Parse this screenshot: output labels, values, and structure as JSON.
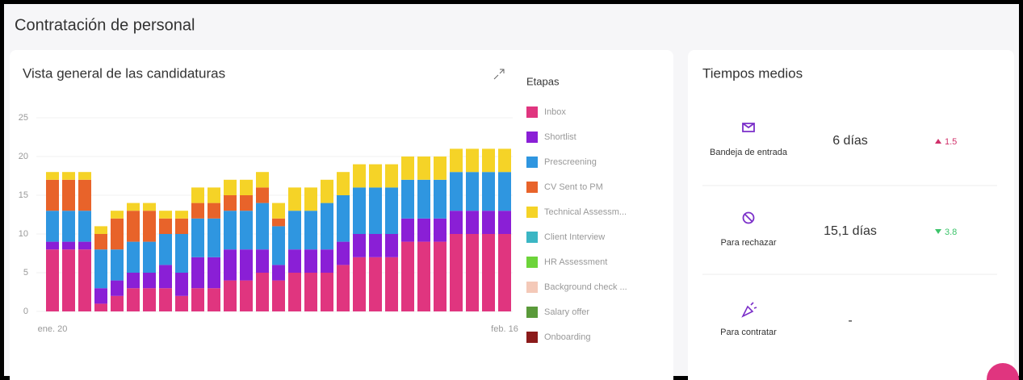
{
  "header": {
    "title": "Contratación de personal"
  },
  "chart_data": {
    "type": "bar",
    "stacked": true,
    "title": "Vista general de las candidaturas",
    "legend_title": "Etapas",
    "categories": [
      "ene. 20",
      null,
      null,
      null,
      null,
      null,
      null,
      null,
      null,
      null,
      null,
      null,
      null,
      null,
      null,
      null,
      null,
      null,
      null,
      null,
      null,
      null,
      null,
      null,
      null,
      null,
      null,
      null,
      "feb. 16"
    ],
    "ylim": [
      0,
      25
    ],
    "yticks": [
      0,
      5,
      10,
      15,
      20,
      25
    ],
    "grid": true,
    "legend": "right",
    "series": [
      {
        "name": "Inbox",
        "color": "#e0357f",
        "values": [
          8,
          8,
          8,
          1,
          2,
          3,
          3,
          3,
          2,
          3,
          3,
          4,
          4,
          5,
          4,
          5,
          5,
          5,
          6,
          7,
          7,
          7,
          9,
          9,
          9,
          10,
          10,
          10,
          10
        ]
      },
      {
        "name": "Shortlist",
        "color": "#8a1fd6",
        "values": [
          1,
          1,
          1,
          2,
          2,
          2,
          2,
          3,
          3,
          4,
          4,
          4,
          4,
          3,
          2,
          3,
          3,
          3,
          3,
          3,
          3,
          3,
          3,
          3,
          3,
          3,
          3,
          3,
          3
        ]
      },
      {
        "name": "Prescreening",
        "color": "#2f96e0",
        "values": [
          4,
          4,
          4,
          5,
          4,
          4,
          4,
          4,
          5,
          5,
          5,
          5,
          5,
          6,
          5,
          5,
          5,
          6,
          6,
          6,
          6,
          6,
          5,
          5,
          5,
          5,
          5,
          5,
          5
        ]
      },
      {
        "name": "CV Sent to PM",
        "color": "#e8632a",
        "values": [
          4,
          4,
          4,
          2,
          4,
          4,
          4,
          2,
          2,
          2,
          2,
          2,
          2,
          2,
          1,
          0,
          0,
          0,
          0,
          0,
          0,
          0,
          0,
          0,
          0,
          0,
          0,
          0,
          0
        ]
      },
      {
        "name": "Technical Assessm...",
        "color": "#f5d327",
        "values": [
          1,
          1,
          1,
          1,
          1,
          1,
          1,
          1,
          1,
          2,
          2,
          2,
          2,
          2,
          2,
          3,
          3,
          3,
          3,
          3,
          3,
          3,
          3,
          3,
          3,
          3,
          3,
          3,
          3
        ]
      },
      {
        "name": "Client Interview",
        "color": "#3bb6c4",
        "values": [
          0,
          0,
          0,
          0,
          0,
          0,
          0,
          0,
          0,
          0,
          0,
          0,
          0,
          0,
          0,
          0,
          0,
          0,
          0,
          0,
          0,
          0,
          0,
          0,
          0,
          0,
          0,
          0,
          0
        ]
      },
      {
        "name": "HR Assessment",
        "color": "#6dd43a",
        "values": [
          0,
          0,
          0,
          0,
          0,
          0,
          0,
          0,
          0,
          0,
          0,
          0,
          0,
          0,
          0,
          0,
          0,
          0,
          0,
          0,
          0,
          0,
          0,
          0,
          0,
          0,
          0,
          0,
          0
        ]
      },
      {
        "name": "Background check ...",
        "color": "#f4c9b8",
        "values": [
          0,
          0,
          0,
          0,
          0,
          0,
          0,
          0,
          0,
          0,
          0,
          0,
          0,
          0,
          0,
          0,
          0,
          0,
          0,
          0,
          0,
          0,
          0,
          0,
          0,
          0,
          0,
          0,
          0
        ]
      },
      {
        "name": "Salary offer",
        "color": "#5a9a3a",
        "values": [
          0,
          0,
          0,
          0,
          0,
          0,
          0,
          0,
          0,
          0,
          0,
          0,
          0,
          0,
          0,
          0,
          0,
          0,
          0,
          0,
          0,
          0,
          0,
          0,
          0,
          0,
          0,
          0,
          0
        ]
      },
      {
        "name": "Onboarding",
        "color": "#8b1a1a",
        "values": [
          0,
          0,
          0,
          0,
          0,
          0,
          0,
          0,
          0,
          0,
          0,
          0,
          0,
          0,
          0,
          0,
          0,
          0,
          0,
          0,
          0,
          0,
          0,
          0,
          0,
          0,
          0,
          0,
          0
        ]
      }
    ]
  },
  "averages": {
    "title": "Tiempos medios",
    "rows": [
      {
        "label": "Bandeja de entrada",
        "value": "6 días",
        "trend": 1.5
      },
      {
        "label": "Para rechazar",
        "value": "15,1 días",
        "trend": 3.8
      },
      {
        "label": "Para contratar",
        "value": "-"
      }
    ]
  }
}
